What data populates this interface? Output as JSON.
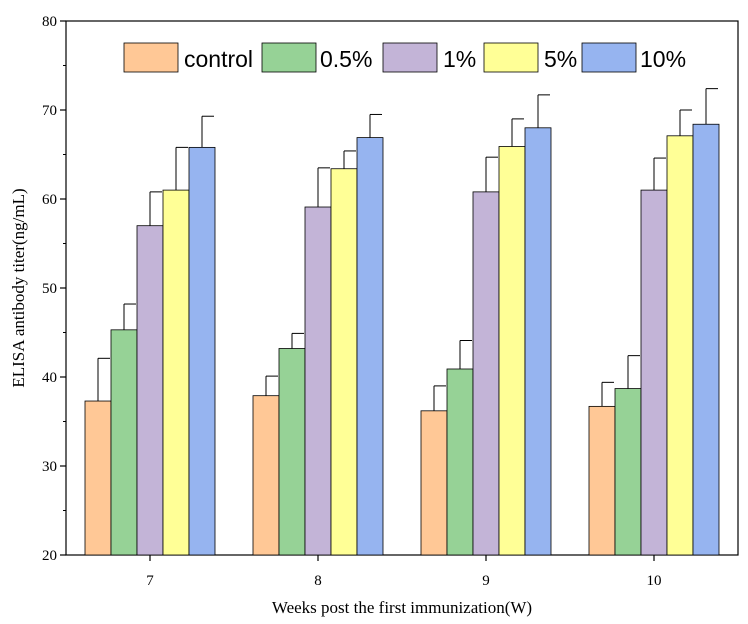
{
  "chart_data": {
    "type": "bar",
    "title": "",
    "xlabel": "Weeks post the first immunization(W)",
    "ylabel": "ELISA antibody titer(ng/mL)",
    "ylim": [
      20,
      80
    ],
    "yticks": [
      20,
      30,
      40,
      50,
      60,
      70,
      80
    ],
    "categories": [
      "7",
      "8",
      "9",
      "10"
    ],
    "legend_position": "top",
    "error_bars": true,
    "series": [
      {
        "name": "control",
        "color": "#ffc896",
        "values": [
          37.3,
          37.9,
          36.2,
          36.7
        ],
        "errors": [
          4.8,
          2.2,
          2.8,
          2.7
        ]
      },
      {
        "name": "0.5%",
        "color": "#96d296",
        "values": [
          45.3,
          43.2,
          40.9,
          38.7
        ],
        "errors": [
          2.9,
          1.7,
          3.2,
          3.7
        ]
      },
      {
        "name": "1%",
        "color": "#c3b4d7",
        "values": [
          57.0,
          59.1,
          60.8,
          61.0
        ],
        "errors": [
          3.8,
          4.4,
          3.9,
          3.6
        ]
      },
      {
        "name": "5%",
        "color": "#ffff96",
        "values": [
          61.0,
          63.4,
          65.9,
          67.1
        ],
        "errors": [
          4.8,
          2.0,
          3.1,
          2.9
        ]
      },
      {
        "name": "10%",
        "color": "#96b4f0",
        "values": [
          65.8,
          66.9,
          68.0,
          68.4
        ],
        "errors": [
          3.5,
          2.6,
          3.7,
          4.0
        ]
      }
    ]
  }
}
